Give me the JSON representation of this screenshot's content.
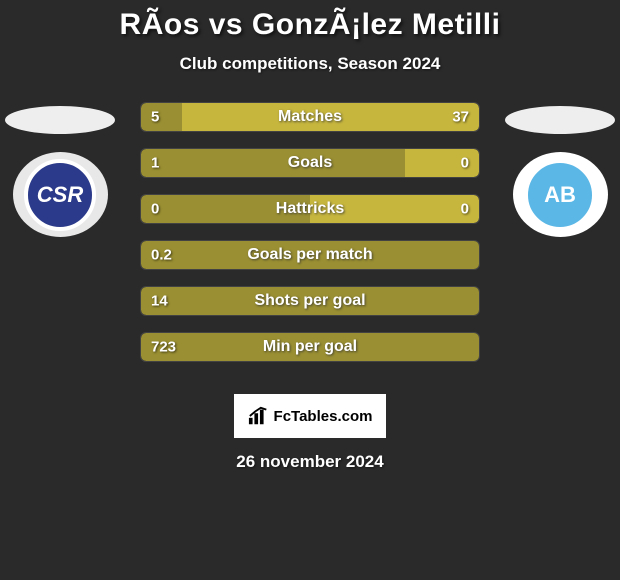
{
  "background_color": "#2a2a2a",
  "title": "RÃ­os vs GonzÃ¡lez Metilli",
  "subtitle": "Club competitions, Season 2024",
  "date_text": "26 november 2024",
  "brand_text": "FcTables.com",
  "left_team": {
    "ellipse_color": "#eeeeee",
    "badge_outer_color": "#e8e8e8",
    "badge_inner_bg": "#2b3a8a",
    "badge_inner_border": "#ffffff",
    "badge_text": "CSR",
    "badge_text_color": "#ffffff"
  },
  "right_team": {
    "ellipse_color": "#eeeeee",
    "badge_outer_color": "#ffffff",
    "badge_inner_bg": "#5ab7e6",
    "badge_inner_border": "#ffffff",
    "badge_text": "AB",
    "badge_text_color": "#ffffff"
  },
  "bars": {
    "left_color": "#9a8f32",
    "right_color": "#c6b63e",
    "rows": [
      {
        "label": "Matches",
        "left": "5",
        "right": "37",
        "left_pct": 12,
        "right_pct": 88
      },
      {
        "label": "Goals",
        "left": "1",
        "right": "0",
        "left_pct": 78,
        "right_pct": 22
      },
      {
        "label": "Hattricks",
        "left": "0",
        "right": "0",
        "left_pct": 50,
        "right_pct": 50
      },
      {
        "label": "Goals per match",
        "left": "0.2",
        "right": "",
        "left_pct": 100,
        "right_pct": 0
      },
      {
        "label": "Shots per goal",
        "left": "14",
        "right": "",
        "left_pct": 100,
        "right_pct": 0
      },
      {
        "label": "Min per goal",
        "left": "723",
        "right": "",
        "left_pct": 100,
        "right_pct": 0
      }
    ]
  }
}
